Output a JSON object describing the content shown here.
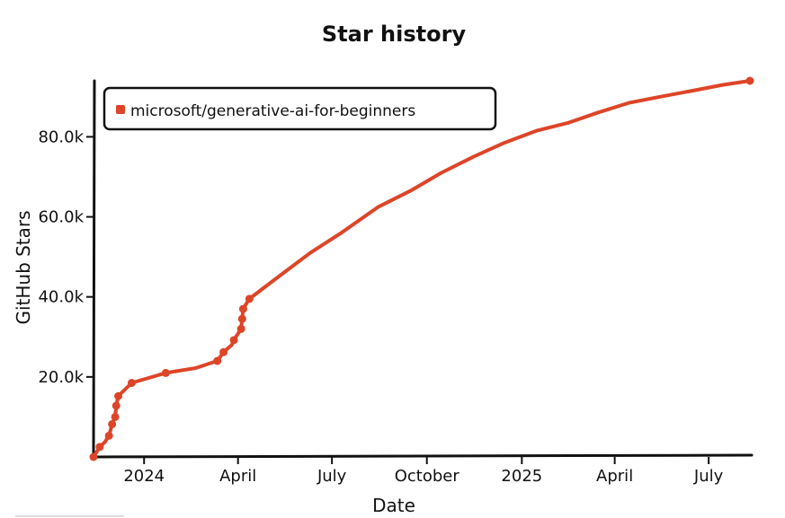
{
  "chart_data": {
    "type": "line",
    "title": "Star history",
    "xlabel": "Date",
    "ylabel": "GitHub Stars",
    "ylim": [
      0,
      94000
    ],
    "xlim": [
      "2023-11-13",
      "2025-08-10"
    ],
    "x_ticks": [
      {
        "label": "2024",
        "date": "2024-01-01"
      },
      {
        "label": "April",
        "date": "2024-04-01"
      },
      {
        "label": "July",
        "date": "2024-07-01"
      },
      {
        "label": "October",
        "date": "2024-10-01"
      },
      {
        "label": "2025",
        "date": "2025-01-01"
      },
      {
        "label": "April",
        "date": "2025-04-01"
      },
      {
        "label": "July",
        "date": "2025-07-01"
      }
    ],
    "y_ticks": [
      {
        "label": "20.0k",
        "value": 20000
      },
      {
        "label": "40.0k",
        "value": 40000
      },
      {
        "label": "60.0k",
        "value": 60000
      },
      {
        "label": "80.0k",
        "value": 80000
      }
    ],
    "grid": false,
    "legend_position": "top-left",
    "series": [
      {
        "name": "microsoft/generative-ai-for-beginners",
        "color": "#dd4528",
        "points": [
          {
            "x": "2023-11-13",
            "y": 0
          },
          {
            "x": "2023-11-19",
            "y": 2500
          },
          {
            "x": "2023-11-24",
            "y": 3700
          },
          {
            "x": "2023-11-28",
            "y": 5300
          },
          {
            "x": "2023-12-01",
            "y": 8200
          },
          {
            "x": "2023-12-04",
            "y": 10000
          },
          {
            "x": "2023-12-05",
            "y": 12800
          },
          {
            "x": "2023-12-07",
            "y": 15200
          },
          {
            "x": "2023-12-20",
            "y": 18500
          },
          {
            "x": "2024-01-22",
            "y": 21000
          },
          {
            "x": "2024-02-20",
            "y": 22200
          },
          {
            "x": "2024-03-12",
            "y": 24000
          },
          {
            "x": "2024-03-18",
            "y": 26200
          },
          {
            "x": "2024-03-26",
            "y": 28000
          },
          {
            "x": "2024-03-28",
            "y": 29200
          },
          {
            "x": "2024-04-04",
            "y": 32000
          },
          {
            "x": "2024-04-05",
            "y": 34500
          },
          {
            "x": "2024-04-06",
            "y": 37000
          },
          {
            "x": "2024-04-12",
            "y": 39500
          },
          {
            "x": "2024-05-10",
            "y": 45000
          },
          {
            "x": "2024-06-10",
            "y": 51000
          },
          {
            "x": "2024-07-10",
            "y": 56000
          },
          {
            "x": "2024-08-15",
            "y": 62500
          },
          {
            "x": "2024-09-15",
            "y": 66500
          },
          {
            "x": "2024-10-15",
            "y": 71000
          },
          {
            "x": "2024-11-15",
            "y": 75000
          },
          {
            "x": "2024-12-15",
            "y": 78500
          },
          {
            "x": "2025-01-15",
            "y": 81500
          },
          {
            "x": "2025-02-15",
            "y": 83500
          },
          {
            "x": "2025-03-15",
            "y": 86000
          },
          {
            "x": "2025-04-15",
            "y": 88500
          },
          {
            "x": "2025-05-15",
            "y": 90000
          },
          {
            "x": "2025-06-15",
            "y": 91500
          },
          {
            "x": "2025-07-15",
            "y": 93000
          },
          {
            "x": "2025-08-10",
            "y": 94000
          }
        ],
        "marked_points": [
          {
            "x": "2023-11-13",
            "y": 0
          },
          {
            "x": "2023-11-19",
            "y": 2500
          },
          {
            "x": "2023-11-28",
            "y": 5300
          },
          {
            "x": "2023-12-01",
            "y": 8200
          },
          {
            "x": "2023-12-04",
            "y": 10000
          },
          {
            "x": "2023-12-05",
            "y": 12800
          },
          {
            "x": "2023-12-07",
            "y": 15200
          },
          {
            "x": "2023-12-20",
            "y": 18500
          },
          {
            "x": "2024-01-22",
            "y": 21000
          },
          {
            "x": "2024-03-12",
            "y": 24000
          },
          {
            "x": "2024-03-18",
            "y": 26200
          },
          {
            "x": "2024-03-28",
            "y": 29200
          },
          {
            "x": "2024-04-04",
            "y": 32000
          },
          {
            "x": "2024-04-05",
            "y": 34500
          },
          {
            "x": "2024-04-06",
            "y": 37000
          },
          {
            "x": "2024-04-12",
            "y": 39500
          },
          {
            "x": "2025-08-10",
            "y": 94000
          }
        ]
      }
    ]
  }
}
